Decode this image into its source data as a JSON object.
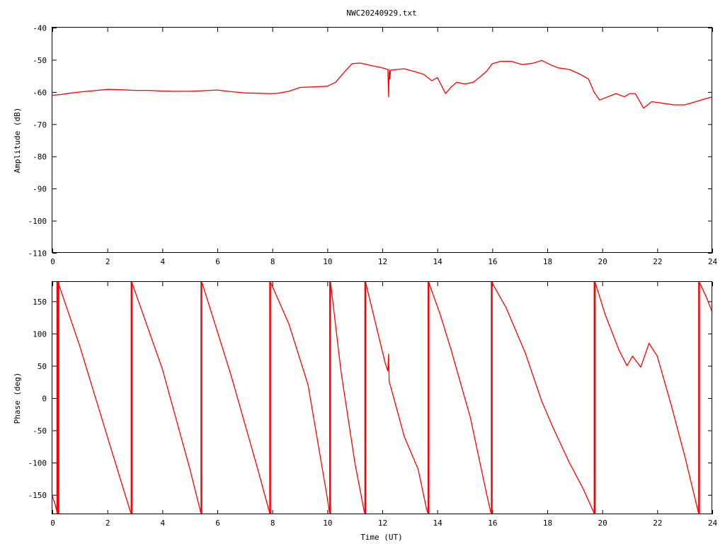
{
  "title": "NWC20240929.txt",
  "colors": {
    "series": "#ff0000",
    "axes": "#000000",
    "background": "#ffffff"
  },
  "chart_data": [
    {
      "type": "line",
      "title": "NWC20240929.txt",
      "xlabel": "",
      "ylabel": "Amplitude (dB)",
      "xlim": [
        0,
        24
      ],
      "ylim": [
        -110,
        -40
      ],
      "xticks": [
        "0",
        "2",
        "4",
        "6",
        "8",
        "10",
        "12",
        "14",
        "16",
        "18",
        "20",
        "22",
        "24"
      ],
      "yticks": [
        "-40",
        "-50",
        "-60",
        "-70",
        "-80",
        "-90",
        "-100",
        "-110"
      ],
      "grid": false,
      "series": [
        {
          "x": [
            0,
            0.3,
            0.6,
            1.0,
            1.5,
            2.0,
            2.5,
            3.0,
            3.5,
            4.0,
            4.5,
            5.0,
            5.5,
            6.0,
            6.5,
            7.0,
            7.5,
            7.9,
            8.2,
            8.6,
            9.0,
            9.5,
            10.0,
            10.3,
            10.6,
            10.9,
            11.2,
            11.6,
            12.0,
            12.2,
            12.23,
            12.25,
            12.27,
            12.3,
            12.5,
            12.8,
            13.1,
            13.5,
            13.8,
            14.0,
            14.3,
            14.5,
            14.7,
            15.0,
            15.3,
            15.6,
            15.8,
            16.0,
            16.3,
            16.7,
            17.1,
            17.5,
            17.8,
            18.1,
            18.4,
            18.8,
            19.2,
            19.5,
            19.7,
            19.9,
            20.2,
            20.5,
            20.8,
            21.0,
            21.2,
            21.5,
            21.8,
            22.2,
            22.6,
            23.0,
            23.4,
            23.8,
            24.0
          ],
          "y": [
            -61,
            -60.8,
            -60.4,
            -60.0,
            -59.6,
            -59.2,
            -59.3,
            -59.5,
            -59.5,
            -59.7,
            -59.8,
            -59.8,
            -59.6,
            -59.4,
            -59.9,
            -60.3,
            -60.4,
            -60.5,
            -60.4,
            -59.8,
            -58.6,
            -58.4,
            -58.2,
            -57.0,
            -54.0,
            -51.2,
            -51.0,
            -51.8,
            -52.5,
            -53.0,
            -61.5,
            -53.0,
            -56.0,
            -53.2,
            -53.0,
            -52.8,
            -53.5,
            -54.5,
            -56.5,
            -55.5,
            -60.5,
            -58.5,
            -57.0,
            -57.5,
            -57.0,
            -55.0,
            -53.5,
            -51.2,
            -50.5,
            -50.5,
            -51.5,
            -51.0,
            -50.2,
            -51.5,
            -52.5,
            -53.0,
            -54.5,
            -56.0,
            -60.0,
            -62.5,
            -61.5,
            -60.5,
            -61.5,
            -60.5,
            -60.5,
            -65.0,
            -63.0,
            -63.5,
            -64.0,
            -64.0,
            -63.0,
            -62.0,
            -61.5
          ]
        }
      ]
    },
    {
      "type": "line",
      "title": "",
      "xlabel": "Time (UT)",
      "ylabel": "Phase (deg)",
      "xlim": [
        0,
        24
      ],
      "ylim": [
        -180,
        180
      ],
      "xticks": [
        "0",
        "2",
        "4",
        "6",
        "8",
        "10",
        "12",
        "14",
        "16",
        "18",
        "20",
        "22",
        "24"
      ],
      "yticks": [
        "150",
        "100",
        "50",
        "0",
        "-50",
        "-100",
        "-150"
      ],
      "grid": false,
      "series": [
        {
          "segments": [
            {
              "x": [
                0.0,
                0.1,
                0.18
              ],
              "y": [
                -152,
                -165,
                -178
              ]
            },
            {
              "x": [
                0.22,
                1.0,
                2.0,
                2.85
              ],
              "y": [
                178,
                80,
                -60,
                -178
              ]
            },
            {
              "x": [
                2.9,
                4.0,
                5.0,
                5.4
              ],
              "y": [
                178,
                45,
                -110,
                -178
              ]
            },
            {
              "x": [
                5.45,
                6.5,
                7.5,
                7.9
              ],
              "y": [
                178,
                35,
                -115,
                -178
              ]
            },
            {
              "x": [
                7.95,
                8.6,
                9.3,
                10.0,
                10.08
              ],
              "y": [
                178,
                115,
                20,
                -155,
                -178
              ]
            },
            {
              "x": [
                10.12,
                10.5,
                11.0,
                11.35
              ],
              "y": [
                178,
                40,
                -100,
                -178
              ]
            },
            {
              "x": [
                11.4,
                12.1,
                12.2,
                12.23,
                12.25,
                12.3,
                12.8,
                13.3,
                13.6,
                13.65
              ],
              "y": [
                178,
                55,
                42,
                68,
                25,
                18,
                -60,
                -110,
                -170,
                -178
              ]
            },
            {
              "x": [
                13.7,
                14.1,
                14.5,
                14.8,
                15.2,
                15.5,
                15.8,
                15.95
              ],
              "y": [
                178,
                130,
                75,
                30,
                -30,
                -90,
                -150,
                -178
              ]
            },
            {
              "x": [
                16.0,
                16.5,
                17.2,
                17.8,
                18.2,
                18.8,
                19.3,
                19.7
              ],
              "y": [
                178,
                140,
                70,
                -5,
                -45,
                -100,
                -140,
                -178
              ]
            },
            {
              "x": [
                19.75,
                20.1,
                20.6,
                20.9,
                21.1,
                21.4,
                21.7,
                22.0,
                22.5,
                23.0,
                23.5
              ],
              "y": [
                178,
                130,
                75,
                50,
                65,
                48,
                85,
                65,
                -10,
                -90,
                -178
              ]
            },
            {
              "x": [
                23.55,
                23.8,
                24.0
              ],
              "y": [
                178,
                155,
                133
              ]
            }
          ],
          "wraps": [
            0.18,
            0.22,
            2.88,
            5.42,
            7.92,
            10.1,
            11.38,
            13.68,
            15.98,
            19.72,
            23.52
          ]
        }
      ]
    }
  ]
}
